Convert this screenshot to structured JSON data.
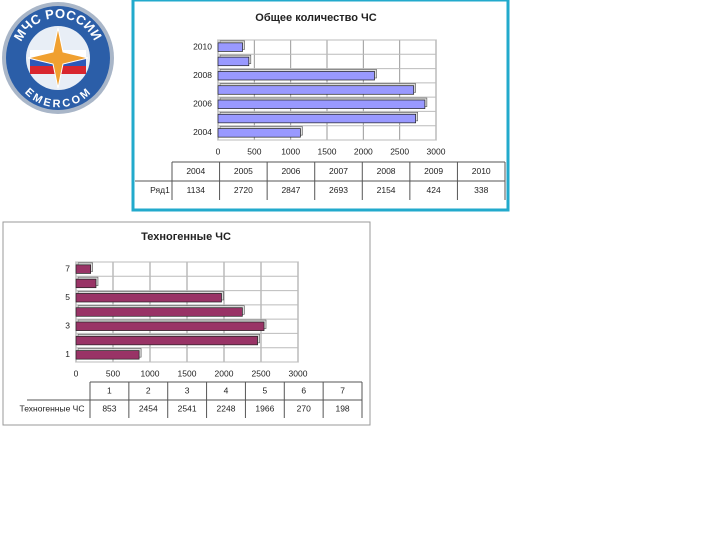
{
  "logo": {
    "top_text": "МЧС РОССИИ",
    "bottom_text": "EMERCOM"
  },
  "chart_data": [
    {
      "type": "bar",
      "orientation": "horizontal",
      "title": "Общее количество ЧС",
      "categories": [
        "2004",
        "2005",
        "2006",
        "2007",
        "2008",
        "2009",
        "2010"
      ],
      "series": [
        {
          "name": "Ряд1",
          "color": "#9999ff",
          "values": [
            1134,
            2720,
            2847,
            2693,
            2154,
            424,
            338
          ]
        }
      ],
      "xlim": [
        0,
        3000
      ],
      "xticks": [
        0,
        500,
        1000,
        1500,
        2000,
        2500,
        3000
      ],
      "grid": true,
      "data_table": true
    },
    {
      "type": "bar",
      "orientation": "horizontal",
      "title": "Техногенные ЧС",
      "categories": [
        "1",
        "2",
        "3",
        "4",
        "5",
        "6",
        "7"
      ],
      "series": [
        {
          "name": "Техногенные ЧС",
          "color": "#993366",
          "values": [
            853,
            2454,
            2541,
            2248,
            1966,
            270,
            198
          ]
        }
      ],
      "xlim": [
        0,
        3000
      ],
      "xticks": [
        0,
        500,
        1000,
        1500,
        2000,
        2500,
        3000
      ],
      "grid": true,
      "data_table": true
    }
  ]
}
